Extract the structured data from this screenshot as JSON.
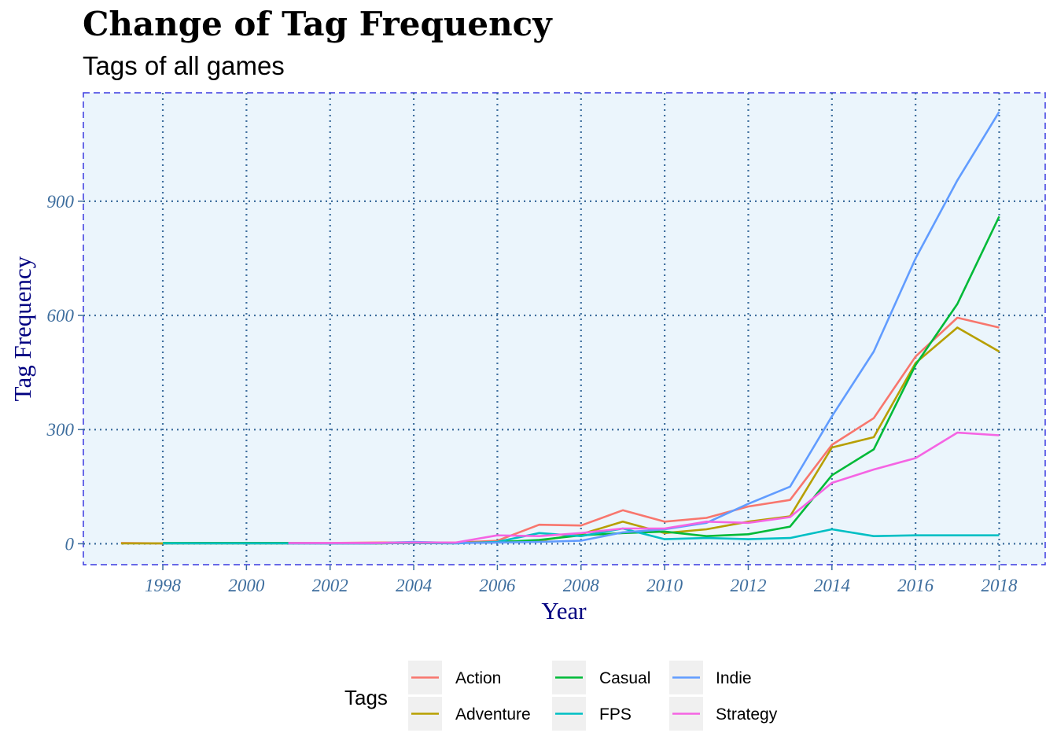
{
  "chart_data": {
    "type": "line",
    "title": "Change of Tag Frequency",
    "subtitle": "Tags of all games",
    "xlabel": "Year",
    "ylabel": "Tag Frequency",
    "xlim": [
      1996.1,
      2019.1
    ],
    "ylim": [
      -55,
      1185
    ],
    "x_ticks": [
      1998,
      2000,
      2002,
      2004,
      2006,
      2008,
      2010,
      2012,
      2014,
      2016,
      2018
    ],
    "x_tick_labels": [
      "1998",
      "2000",
      "2002",
      "2004",
      "2006",
      "2008",
      "2010",
      "2012",
      "2014",
      "2016",
      "2018"
    ],
    "y_ticks": [
      0,
      300,
      600,
      900
    ],
    "y_tick_labels": [
      "0",
      "300",
      "600",
      "900"
    ],
    "grid": true,
    "legend_title": "Tags",
    "legend_position": "bottom",
    "series": [
      {
        "name": "Action",
        "color": "#F8766D",
        "x": [
          1997,
          1998,
          1999,
          2000,
          2001,
          2002,
          2003,
          2004,
          2005,
          2006,
          2007,
          2008,
          2009,
          2010,
          2011,
          2012,
          2013,
          2014,
          2015,
          2016,
          2017,
          2018
        ],
        "y": [
          2,
          1,
          2,
          2,
          2,
          2,
          3,
          4,
          3,
          8,
          50,
          48,
          88,
          58,
          68,
          98,
          115,
          260,
          330,
          492,
          594,
          568
        ]
      },
      {
        "name": "Adventure",
        "color": "#B79F00",
        "x": [
          1997,
          1998,
          1999,
          2000,
          2001,
          2002,
          2003,
          2004,
          2005,
          2006,
          2007,
          2008,
          2009,
          2010,
          2011,
          2012,
          2013,
          2014,
          2015,
          2016,
          2017,
          2018
        ],
        "y": [
          1,
          1,
          1,
          1,
          1,
          1,
          1,
          2,
          2,
          5,
          8,
          25,
          58,
          28,
          38,
          58,
          72,
          253,
          280,
          475,
          568,
          505
        ]
      },
      {
        "name": "Casual",
        "color": "#00BA38",
        "x": [
          1998,
          1999,
          2000,
          2001,
          2002,
          2003,
          2004,
          2005,
          2006,
          2007,
          2008,
          2009,
          2010,
          2011,
          2012,
          2013,
          2014,
          2015,
          2016,
          2017,
          2018
        ],
        "y": [
          2,
          2,
          2,
          2,
          1,
          1,
          2,
          2,
          4,
          10,
          22,
          28,
          32,
          20,
          25,
          45,
          180,
          248,
          470,
          630,
          860
        ]
      },
      {
        "name": "FPS",
        "color": "#00BFC4",
        "x": [
          1998,
          1999,
          2000,
          2001,
          2002,
          2003,
          2004,
          2005,
          2006,
          2007,
          2008,
          2009,
          2010,
          2011,
          2012,
          2013,
          2014,
          2015,
          2016,
          2017,
          2018
        ],
        "y": [
          1,
          1,
          1,
          1,
          1,
          1,
          2,
          1,
          5,
          28,
          20,
          40,
          12,
          15,
          12,
          15,
          38,
          20,
          22,
          22,
          22
        ]
      },
      {
        "name": "Indie",
        "color": "#619CFF",
        "x": [
          2001,
          2002,
          2003,
          2004,
          2005,
          2006,
          2007,
          2008,
          2009,
          2010,
          2011,
          2012,
          2013,
          2014,
          2015,
          2016,
          2017,
          2018
        ],
        "y": [
          1,
          1,
          1,
          5,
          2,
          3,
          5,
          8,
          30,
          38,
          55,
          105,
          150,
          335,
          505,
          750,
          955,
          1135
        ]
      },
      {
        "name": "Strategy",
        "color": "#F564E3",
        "x": [
          2001,
          2002,
          2003,
          2004,
          2005,
          2006,
          2007,
          2008,
          2009,
          2010,
          2011,
          2012,
          2013,
          2014,
          2015,
          2016,
          2017,
          2018
        ],
        "y": [
          2,
          2,
          2,
          3,
          3,
          22,
          20,
          28,
          40,
          40,
          58,
          55,
          70,
          160,
          195,
          225,
          292,
          285
        ]
      }
    ]
  }
}
